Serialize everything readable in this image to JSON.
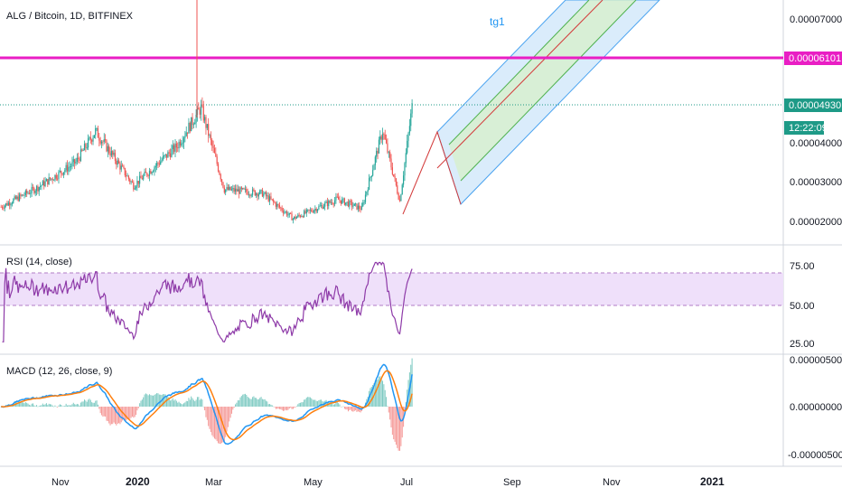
{
  "header": {
    "symbol": "ALG / Bitcoin, 1D, BITFINEX",
    "drawing_label": "tg1"
  },
  "price_axis": {
    "ticks": [
      "0.00007000",
      "0.00004000",
      "0.00003000",
      "0.00002000"
    ],
    "hline_badge": "0.00006101",
    "last_price_badge": "0.00004930",
    "countdown_badge": "12:22:09"
  },
  "rsi": {
    "label": "RSI (14, close)",
    "ticks": [
      "75.00",
      "50.00",
      "25.00"
    ]
  },
  "macd": {
    "label": "MACD (12, 26, close, 9)",
    "ticks": [
      "0.00000500",
      "0.00000000",
      "-0.00000500"
    ]
  },
  "time_axis": {
    "labels": [
      "Nov",
      "2020",
      "Mar",
      "May",
      "Jul",
      "Sep",
      "Nov",
      "2021"
    ]
  },
  "colors": {
    "up": "#26a69a",
    "down": "#ef5350",
    "hline": "#e91ec4",
    "last_line": "#1e9a87",
    "rsi_line": "#8e3aa8",
    "rsi_band": "#efe0fa",
    "macd_line": "#2196f3",
    "signal_line": "#ff7f0e",
    "channel_blue": "#bcdcf7",
    "channel_green": "#d7f0c9",
    "channel_red": "#d33b3b"
  },
  "chart_data": {
    "type": "candlestick",
    "instrument": "ALG / Bitcoin",
    "interval": "1D",
    "exchange": "BITFINEX",
    "price_range": [
      1.6e-05,
      7.8e-05
    ],
    "horizontal_line": 6.101e-05,
    "last_price": 4.93e-05,
    "approx_price_path": [
      {
        "date": "2019-09-15",
        "price": 2.35e-05
      },
      {
        "date": "2019-10-15",
        "price": 2.85e-05
      },
      {
        "date": "2019-11-15",
        "price": 3.5e-05
      },
      {
        "date": "2019-12-01",
        "price": 4.3e-05
      },
      {
        "date": "2020-01-01",
        "price": 2.9e-05
      },
      {
        "date": "2020-02-05",
        "price": 3.9e-05
      },
      {
        "date": "2020-02-25",
        "price": 4.9e-05
      },
      {
        "date": "2020-03-15",
        "price": 2.8e-05
      },
      {
        "date": "2020-04-15",
        "price": 2.7e-05
      },
      {
        "date": "2020-05-10",
        "price": 2.05e-05
      },
      {
        "date": "2020-06-15",
        "price": 2.55e-05
      },
      {
        "date": "2020-07-05",
        "price": 2.3e-05
      },
      {
        "date": "2020-07-22",
        "price": 4.3e-05
      },
      {
        "date": "2020-08-05",
        "price": 2.5e-05
      },
      {
        "date": "2020-08-15",
        "price": 4.93e-05
      }
    ],
    "rsi": {
      "overbought": 70,
      "oversold": 50,
      "range": [
        20,
        85
      ]
    },
    "macd": {
      "range": [
        -6e-06,
        6e-06
      ]
    }
  }
}
